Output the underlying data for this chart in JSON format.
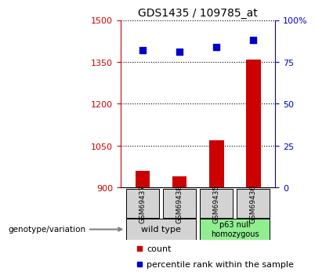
{
  "title": "GDS1435 / 109785_at",
  "samples": [
    "GSM69437",
    "GSM69438",
    "GSM69435",
    "GSM69436"
  ],
  "counts": [
    960,
    940,
    1070,
    1360
  ],
  "percentiles": [
    82,
    81,
    84,
    88
  ],
  "ylim_left": [
    900,
    1500
  ],
  "ylim_right": [
    0,
    100
  ],
  "yticks_left": [
    900,
    1050,
    1200,
    1350,
    1500
  ],
  "yticks_right": [
    0,
    25,
    50,
    75,
    100
  ],
  "ytick_labels_right": [
    "0",
    "25",
    "50",
    "75",
    "100%"
  ],
  "bar_color": "#cc0000",
  "scatter_color": "#0000cc",
  "groups": [
    {
      "label": "wild type",
      "indices": [
        0,
        1
      ],
      "color": "#d3d3d3"
    },
    {
      "label": "p63 null\nhomozygous",
      "indices": [
        2,
        3
      ],
      "color": "#90ee90"
    }
  ],
  "xlabel_left": "genotype/variation",
  "legend_count_label": "count",
  "legend_percentile_label": "percentile rank within the sample",
  "bar_width": 0.4,
  "x_positions": [
    1,
    2,
    3,
    4
  ]
}
